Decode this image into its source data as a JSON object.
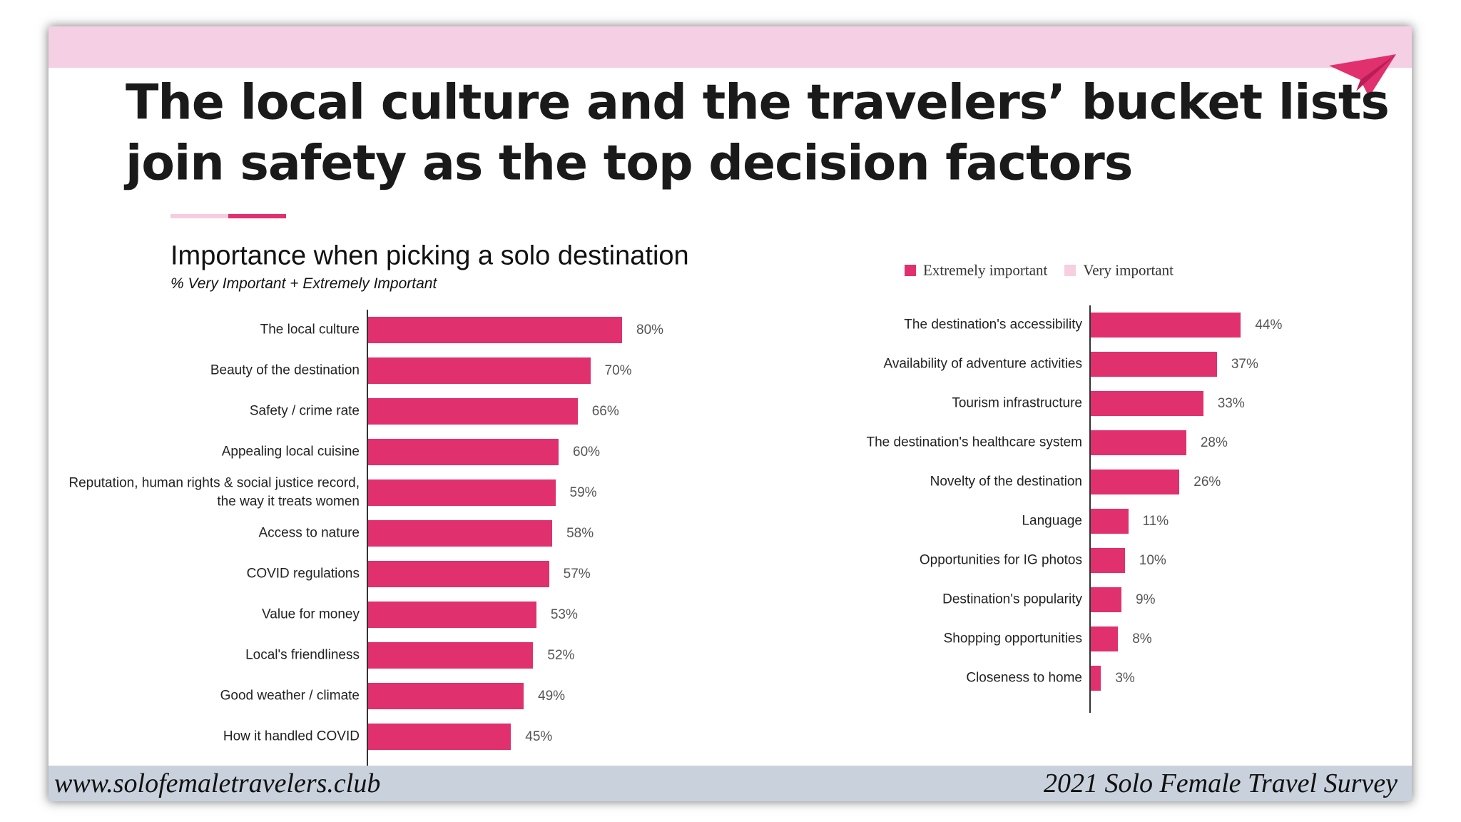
{
  "slide": {
    "title_lines": [
      "The local culture and the travelers’ bucket lists",
      "join safety as the top decision factors"
    ],
    "footer_left": "www.solofemaletravelers.club",
    "footer_right": "2021 Solo Female Travel Survey"
  },
  "chart_data": [
    {
      "type": "bar",
      "orientation": "horizontal",
      "title": "Importance when picking a solo destination",
      "subtitle": "% Very Important + Extremely Important",
      "color": "#e0306e",
      "xlim": [
        0,
        100
      ],
      "categories": [
        "The local culture",
        "Beauty of the destination",
        "Safety / crime rate",
        "Appealing local cuisine",
        "Reputation, human rights & social justice record, the way it treats women",
        "Access to nature",
        "COVID regulations",
        "Value for money",
        "Local's friendliness",
        "Good weather / climate",
        "How it handled COVID"
      ],
      "values": [
        80,
        70,
        66,
        60,
        59,
        58,
        57,
        53,
        52,
        49,
        45
      ],
      "value_labels": [
        "80%",
        "70%",
        "66%",
        "60%",
        "59%",
        "58%",
        "57%",
        "53%",
        "52%",
        "49%",
        "45%"
      ]
    },
    {
      "type": "bar",
      "orientation": "horizontal",
      "color": "#e0306e",
      "xlim": [
        0,
        100
      ],
      "legend": [
        {
          "name": "Extremely important",
          "color": "#e0306e"
        },
        {
          "name": "Very important",
          "color": "#f7cfe0"
        }
      ],
      "categories": [
        "The destination's accessibility",
        "Availability of adventure activities",
        "Tourism infrastructure",
        "The destination's healthcare system",
        "Novelty of the destination",
        "Language",
        "Opportunities for IG photos",
        "Destination's popularity",
        "Shopping opportunities",
        "Closeness to home"
      ],
      "values": [
        44,
        37,
        33,
        28,
        26,
        11,
        10,
        9,
        8,
        3
      ],
      "value_labels": [
        "44%",
        "37%",
        "33%",
        "28%",
        "26%",
        "11%",
        "10%",
        "9%",
        "8%",
        "3%"
      ]
    }
  ]
}
